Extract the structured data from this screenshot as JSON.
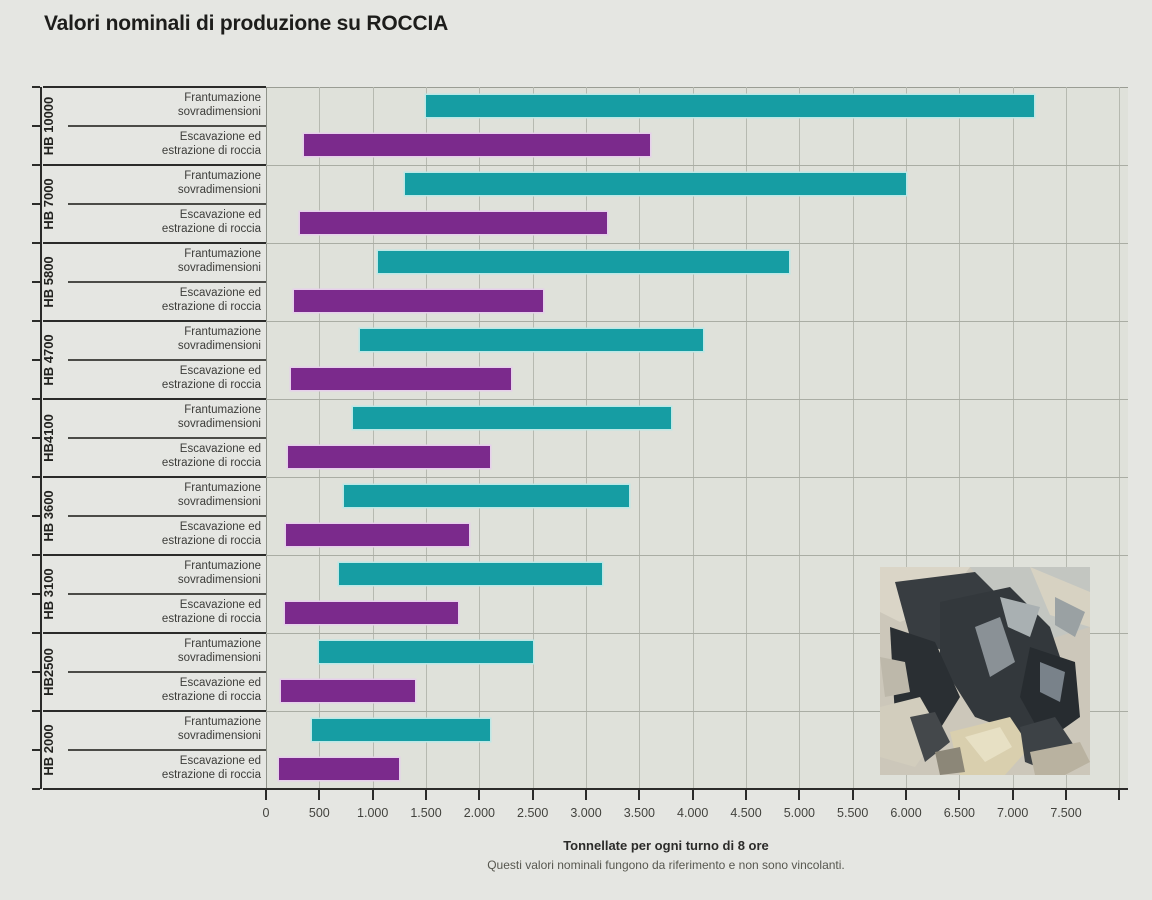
{
  "title": "Valori nominali di produzione su ROCCIA",
  "chart_data": {
    "type": "bar",
    "subtype": "horizontal-range-bars",
    "title": "Valori nominali di produzione su ROCCIA",
    "xlabel": "Tonnellate per ogni turno di 8 ore",
    "footnote": "Questi valori nominali fungono da riferimento e non sono vincolanti.",
    "xlim": [
      0,
      8080
    ],
    "grid": true,
    "legend_position": "none",
    "unit": "tonnellate per turno di 8 ore",
    "series": [
      {
        "id": "frantumazione",
        "label": "Frantumazione sovradimensioni",
        "label_lines": [
          "Frantumazione",
          "sovradimensioni"
        ],
        "color": "#169da3",
        "halo_color": "#bce8e6"
      },
      {
        "id": "escavazione",
        "label": "Escavazione ed estrazione di roccia",
        "label_lines": [
          "Escavazione ed",
          "estrazione di roccia"
        ],
        "color": "#7b2a8c",
        "halo_color": "#e6cfeb"
      }
    ],
    "models": [
      {
        "name": "HB 10000",
        "frantumazione": [
          1500,
          7200
        ],
        "escavazione": [
          360,
          3600
        ]
      },
      {
        "name": "HB 7000",
        "frantumazione": [
          1300,
          6000
        ],
        "escavazione": [
          320,
          3200
        ]
      },
      {
        "name": "HB 5800",
        "frantumazione": [
          1050,
          4900
        ],
        "escavazione": [
          260,
          2600
        ]
      },
      {
        "name": "HB 4700",
        "frantumazione": [
          880,
          4100
        ],
        "escavazione": [
          230,
          2300
        ]
      },
      {
        "name": "HB4100",
        "frantumazione": [
          820,
          3800
        ],
        "escavazione": [
          210,
          2100
        ]
      },
      {
        "name": "HB 3600",
        "frantumazione": [
          730,
          3400
        ],
        "escavazione": [
          190,
          1900
        ]
      },
      {
        "name": "HB 3100",
        "frantumazione": [
          680,
          3150
        ],
        "escavazione": [
          180,
          1800
        ]
      },
      {
        "name": "HB2500",
        "frantumazione": [
          500,
          2500
        ],
        "escavazione": [
          140,
          1400
        ]
      },
      {
        "name": "HB 2000",
        "frantumazione": [
          430,
          2100
        ],
        "escavazione": [
          125,
          1250
        ]
      }
    ],
    "xticks": [
      0,
      500,
      1000,
      1500,
      2000,
      2500,
      3000,
      3500,
      4000,
      4500,
      5000,
      5500,
      6000,
      6500,
      7000,
      7500
    ],
    "xtick_labels": [
      "0",
      "500",
      "1.000",
      "1.500",
      "2.000",
      "2.500",
      "3.000",
      "3.500",
      "4.000",
      "4.500",
      "5.000",
      "5.500",
      "6.000",
      "6.500",
      "7.000",
      "7.500"
    ]
  },
  "colors": {
    "page_background": "#e5e6e2",
    "plot_background": "#dfe1da",
    "gridline": "#b6b9b0",
    "axis": "#2b2b29",
    "bar_teal": "#169da3",
    "bar_purple": "#7b2a8c"
  },
  "photo": {
    "description": "rock-rubble-photo"
  }
}
